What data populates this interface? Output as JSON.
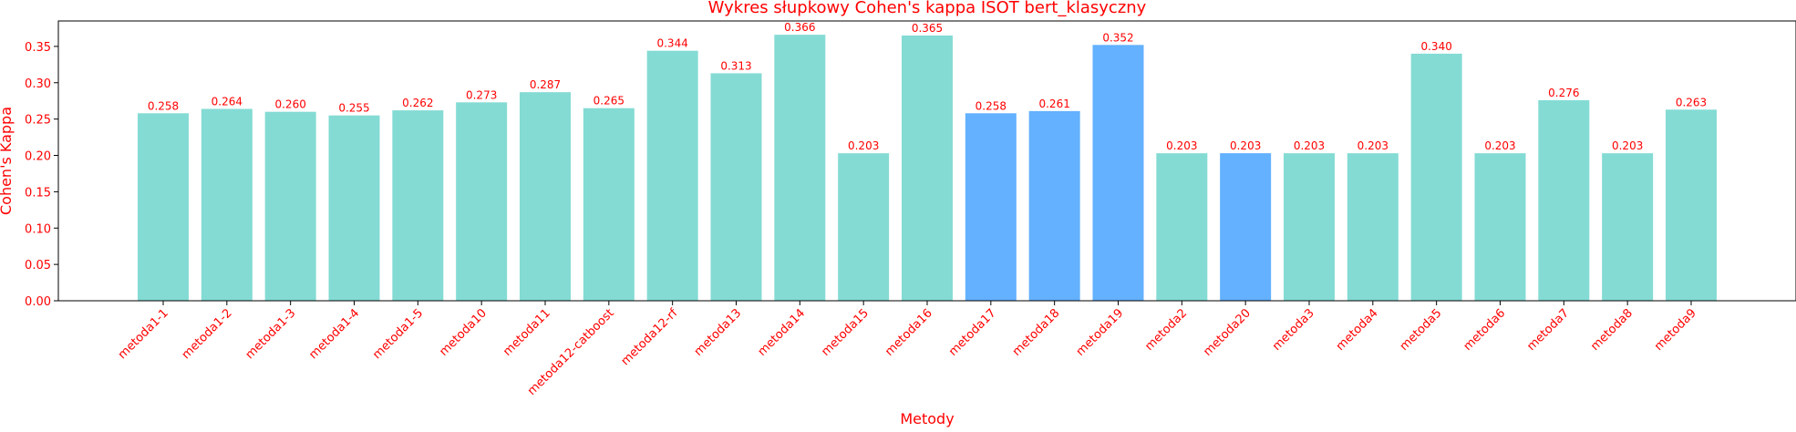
{
  "chart_data": {
    "type": "bar",
    "title": "Wykres słupkowy Cohen's kappa ISOT bert_klasyczny",
    "xlabel": "Metody",
    "ylabel": "Cohen's Kappa",
    "ylim": [
      0,
      0.385
    ],
    "yticks": [
      "0.00",
      "0.05",
      "0.10",
      "0.15",
      "0.20",
      "0.25",
      "0.30",
      "0.35"
    ],
    "grid": false,
    "categories": [
      "metoda1-1",
      "metoda1-2",
      "metoda1-3",
      "metoda1-4",
      "metoda1-5",
      "metoda10",
      "metoda11",
      "metoda12-catboost",
      "metoda12-rf",
      "metoda13",
      "metoda14",
      "metoda15",
      "metoda16",
      "metoda17",
      "metoda18",
      "metoda19",
      "metoda2",
      "metoda20",
      "metoda3",
      "metoda4",
      "metoda5",
      "metoda6",
      "metoda7",
      "metoda8",
      "metoda9"
    ],
    "values": [
      0.258,
      0.264,
      0.26,
      0.255,
      0.262,
      0.273,
      0.287,
      0.265,
      0.344,
      0.313,
      0.366,
      0.203,
      0.365,
      0.258,
      0.261,
      0.352,
      0.203,
      0.203,
      0.203,
      0.203,
      0.34,
      0.203,
      0.276,
      0.203,
      0.263
    ],
    "value_labels": [
      "0.258",
      "0.264",
      "0.260",
      "0.255",
      "0.262",
      "0.273",
      "0.287",
      "0.265",
      "0.344",
      "0.313",
      "0.366",
      "0.203",
      "0.365",
      "0.258",
      "0.261",
      "0.352",
      "0.203",
      "0.203",
      "0.203",
      "0.203",
      "0.340",
      "0.203",
      "0.276",
      "0.203",
      "0.263"
    ],
    "highlighted": [
      "metoda17",
      "metoda18",
      "metoda19",
      "metoda20"
    ],
    "colors": {
      "bar": "#84dbd4",
      "highlight": "#63b1ff",
      "text": "#ff0000",
      "axis": "#000000"
    }
  }
}
